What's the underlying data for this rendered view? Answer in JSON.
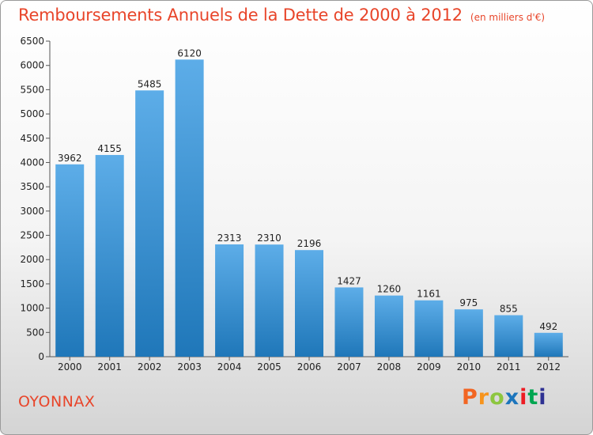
{
  "header": {
    "title": "Remboursements Annuels de la Dette de 2000 à 2012",
    "subtitle": "(en milliers d'€)"
  },
  "footer": {
    "commune": "OYONNAX",
    "brand": "Proxiti",
    "brand_colors": [
      "#f26522",
      "#f7941d",
      "#8dc63f",
      "#1c75bc",
      "#ed1c24",
      "#00a651",
      "#2e3192"
    ]
  },
  "chart_data": {
    "type": "bar",
    "title": "Remboursements Annuels de la Dette de 2000 à 2012",
    "subtitle": "(en milliers d'€)",
    "xlabel": "",
    "ylabel": "",
    "categories": [
      "2000",
      "2001",
      "2002",
      "2003",
      "2004",
      "2005",
      "2006",
      "2007",
      "2008",
      "2009",
      "2010",
      "2011",
      "2012"
    ],
    "values": [
      3962,
      4155,
      5485,
      6120,
      2313,
      2310,
      2196,
      1427,
      1260,
      1161,
      975,
      855,
      492
    ],
    "ylim": [
      0,
      6500
    ],
    "yticks": [
      "0",
      "500",
      "1000",
      "1500",
      "2000",
      "2500",
      "3000",
      "3500",
      "4000",
      "4500",
      "5000",
      "5500",
      "6000",
      "6500"
    ],
    "grid": false,
    "legend": "none",
    "bar_color_top": "#5dade8",
    "bar_color_bottom": "#1f77b9"
  }
}
